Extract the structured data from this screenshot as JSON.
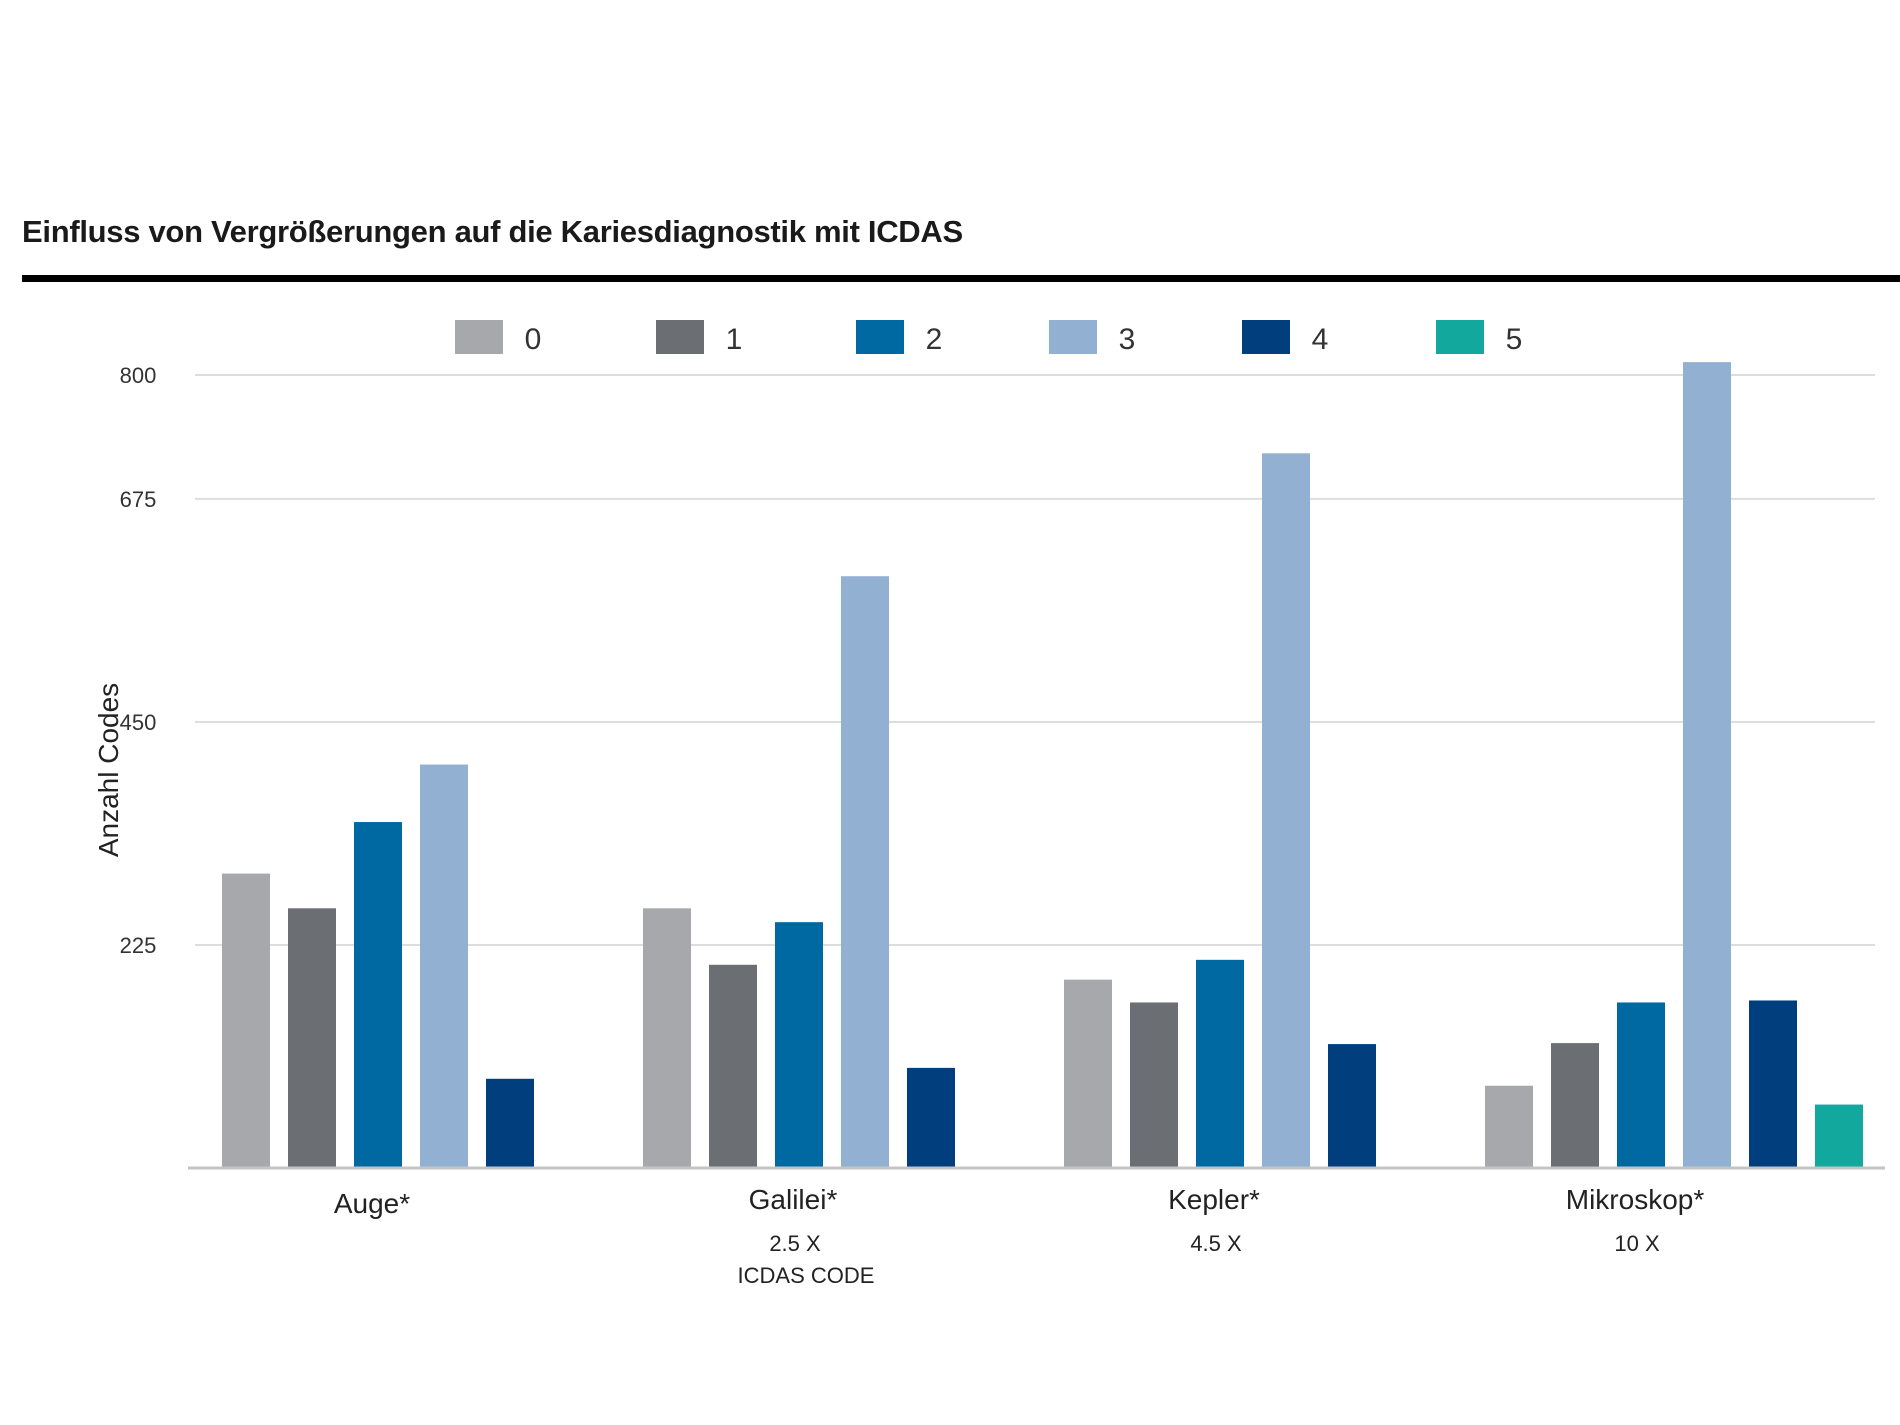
{
  "chart_data": {
    "type": "bar",
    "title": "Einfluss von Vergrößerungen auf die Kariesdiagnostik mit ICDAS",
    "ylabel": "Anzahl Codes",
    "xlabel": "ICDAS CODE",
    "ylim": [
      0,
      800
    ],
    "yticks": [
      "800",
      "675",
      "450",
      "225"
    ],
    "ytick_values": [
      800,
      675,
      450,
      225
    ],
    "grid": true,
    "legend_position": "top",
    "categories": [
      "Auge*",
      "Galilei*",
      "Kepler*",
      "Mikroskop*"
    ],
    "category_sublabels": [
      "",
      "2.5 X",
      "4.5 X",
      "10 X"
    ],
    "series": [
      {
        "name": "0",
        "color": "#a6a8ac",
        "values": [
          297,
          262,
          190,
          83
        ]
      },
      {
        "name": "1",
        "color": "#6b6e72",
        "values": [
          262,
          205,
          167,
          126
        ]
      },
      {
        "name": "2",
        "color": "#0069a2",
        "values": [
          349,
          248,
          210,
          167
        ]
      },
      {
        "name": "3",
        "color": "#92b0d1",
        "values": [
          407,
          597,
          721,
          813
        ]
      },
      {
        "name": "4",
        "color": "#003e7e",
        "values": [
          90,
          101,
          125,
          169
        ]
      },
      {
        "name": "5",
        "color": "#13a89e",
        "values": [
          0,
          0,
          0,
          64
        ]
      }
    ]
  }
}
